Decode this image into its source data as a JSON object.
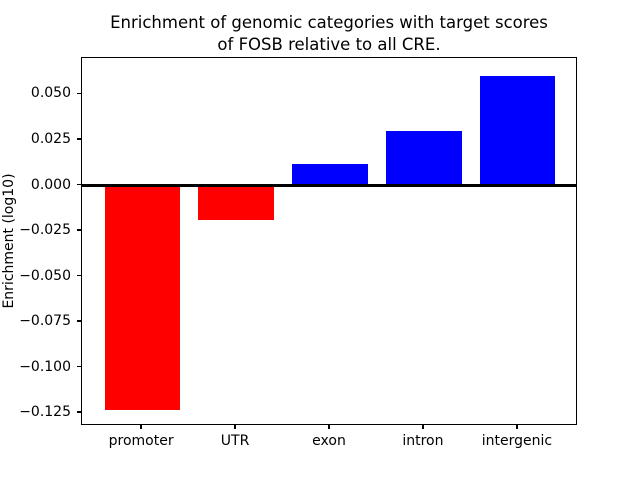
{
  "title": {
    "line1": "Enrichment of genomic categories with target scores",
    "line2": "of FOSB relative to all CRE."
  },
  "chart_data": {
    "type": "bar",
    "title": "Enrichment of genomic categories with target scores\nof FOSB relative to all CRE.",
    "xlabel": "",
    "ylabel": "Enrichment (log10)",
    "categories": [
      "promoter",
      "UTR",
      "exon",
      "intron",
      "intergenic"
    ],
    "values": [
      -0.123,
      -0.019,
      0.012,
      0.03,
      0.06
    ],
    "bar_colors": [
      "#ff0000",
      "#ff0000",
      "#0000ff",
      "#0000ff",
      "#0000ff"
    ],
    "negative_color": "#ff0000",
    "positive_color": "#0000ff",
    "ylim": [
      -0.132,
      0.07
    ],
    "xlim": [
      -0.64,
      4.64
    ],
    "bar_width": 0.8,
    "yticks": [
      0.05,
      0.025,
      0.0,
      -0.025,
      -0.05,
      -0.075,
      -0.1,
      -0.125
    ],
    "ytick_labels": [
      "0.050",
      "0.025",
      "0.000",
      "−0.025",
      "−0.050",
      "−0.075",
      "−0.100",
      "−0.125"
    ],
    "grid": false,
    "legend": "none",
    "zero_line": true,
    "background": "#ffffff"
  }
}
